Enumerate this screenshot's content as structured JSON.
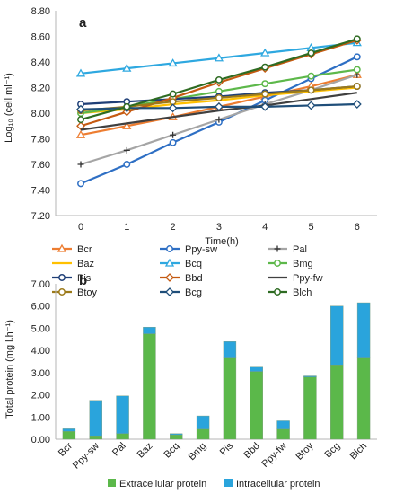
{
  "chart_data": [
    {
      "type": "line",
      "panel_label": "a",
      "ylabel": "Log₁₀ (cell ml⁻¹)",
      "xlabel": "Time(h)",
      "x": [
        0,
        1,
        2,
        3,
        4,
        5,
        6
      ],
      "ylim": [
        7.2,
        8.8
      ],
      "yticks": [
        "7.20",
        "7.40",
        "7.60",
        "7.80",
        "8.00",
        "8.20",
        "8.40",
        "8.60",
        "8.80"
      ],
      "grid": false,
      "legend_position": "bottom",
      "series": [
        {
          "name": "Bcr",
          "color": "#ED7D31",
          "marker": "triangle",
          "values": [
            7.83,
            7.9,
            7.97,
            8.05,
            8.13,
            8.21,
            8.3
          ]
        },
        {
          "name": "Ppy-sw",
          "color": "#2E6FC4",
          "marker": "circle",
          "values": [
            7.45,
            7.6,
            7.77,
            7.93,
            8.1,
            8.27,
            8.44
          ]
        },
        {
          "name": "Pal",
          "color": "#A5A5A5",
          "marker": "plus",
          "values": [
            7.6,
            7.71,
            7.83,
            7.95,
            8.07,
            8.18,
            8.3
          ]
        },
        {
          "name": "Baz",
          "color": "#FFC000",
          "marker": "none",
          "values": [
            8.0,
            8.03,
            8.07,
            8.1,
            8.14,
            8.17,
            8.2
          ]
        },
        {
          "name": "Bcq",
          "color": "#2EA8E0",
          "marker": "triangle",
          "values": [
            8.31,
            8.35,
            8.39,
            8.43,
            8.47,
            8.51,
            8.55
          ]
        },
        {
          "name": "Bmg",
          "color": "#5DB84A",
          "marker": "circle",
          "values": [
            8.0,
            8.05,
            8.11,
            8.17,
            8.23,
            8.29,
            8.34
          ]
        },
        {
          "name": "Pis",
          "color": "#1F3F77",
          "marker": "circle",
          "values": [
            8.07,
            8.09,
            8.11,
            8.13,
            8.16,
            8.18,
            8.21
          ]
        },
        {
          "name": "Bbd",
          "color": "#C55A11",
          "marker": "diamond",
          "values": [
            7.9,
            8.01,
            8.12,
            8.24,
            8.35,
            8.46,
            8.57
          ]
        },
        {
          "name": "Ppy-fw",
          "color": "#404040",
          "marker": "none",
          "values": [
            7.87,
            7.92,
            7.97,
            8.02,
            8.06,
            8.11,
            8.16
          ]
        },
        {
          "name": "Btoy",
          "color": "#9C7A1A",
          "marker": "circle",
          "values": [
            8.02,
            8.05,
            8.09,
            8.12,
            8.15,
            8.18,
            8.21
          ]
        },
        {
          "name": "Bcg",
          "color": "#1F4E79",
          "marker": "diamond",
          "values": [
            8.03,
            8.04,
            8.04,
            8.05,
            8.05,
            8.06,
            8.07
          ]
        },
        {
          "name": "Blch",
          "color": "#2E6B22",
          "marker": "circle",
          "values": [
            7.95,
            8.05,
            8.15,
            8.26,
            8.36,
            8.47,
            8.58
          ]
        }
      ]
    },
    {
      "type": "bar",
      "stacked": true,
      "panel_label": "b",
      "ylabel": "Total protein (mg l.h⁻¹)",
      "xlabel": "",
      "categories": [
        "Bcr",
        "Ppy-sw",
        "Pal",
        "Baz",
        "Bcq",
        "Bmg",
        "Pis",
        "Bbd",
        "Ppy-fw",
        "Btoy",
        "Bcg",
        "Blch"
      ],
      "ylim": [
        0,
        7
      ],
      "yticks": [
        "0.00",
        "1.00",
        "2.00",
        "3.00",
        "4.00",
        "5.00",
        "6.00",
        "7.00"
      ],
      "grid": false,
      "legend_position": "bottom",
      "series": [
        {
          "name": "Extracellular protein",
          "color": "#5BB84A",
          "values": [
            0.35,
            0.15,
            0.25,
            4.75,
            0.2,
            0.45,
            3.65,
            3.05,
            0.45,
            2.8,
            3.35,
            3.65
          ]
        },
        {
          "name": "Intracellular protein",
          "color": "#2AA4DC",
          "values": [
            0.12,
            1.6,
            1.7,
            0.3,
            0.05,
            0.6,
            0.75,
            0.2,
            0.38,
            0.05,
            2.65,
            2.5
          ]
        }
      ]
    }
  ]
}
